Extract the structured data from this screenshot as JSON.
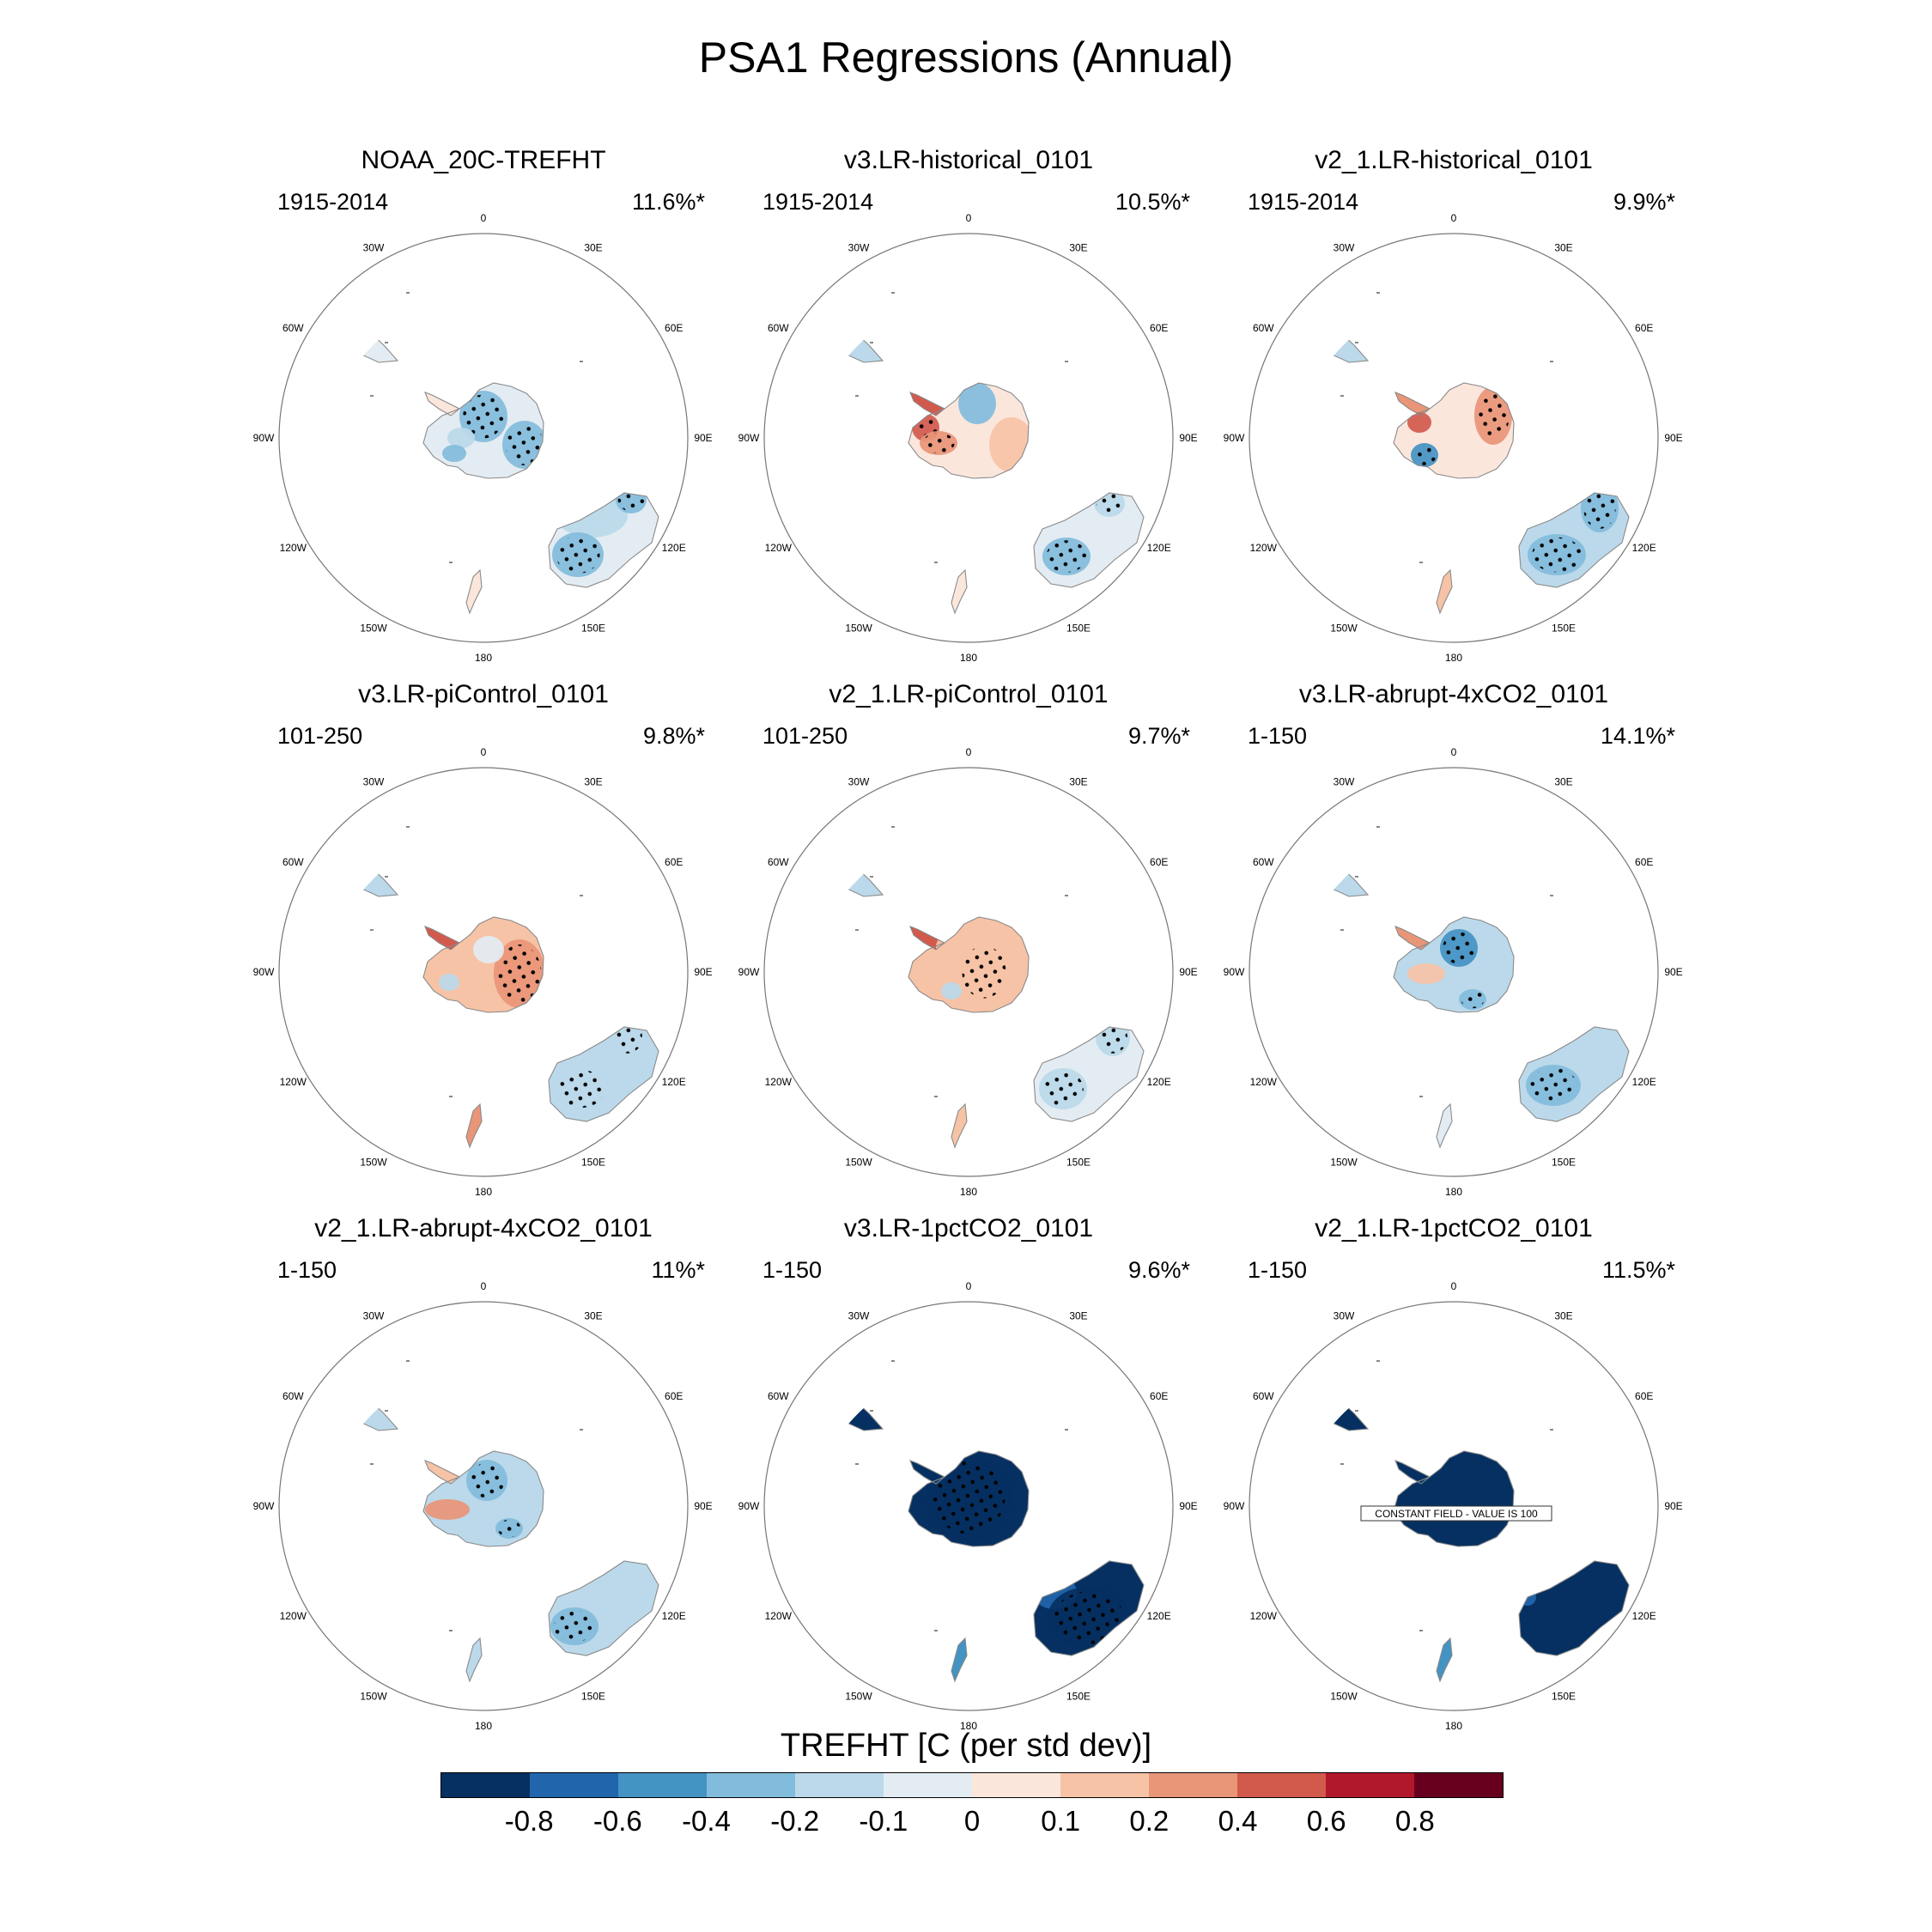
{
  "title": "PSA1 Regressions (Annual)",
  "lon_labels": [
    "0",
    "30E",
    "60E",
    "90E",
    "120E",
    "150E",
    "180",
    "150W",
    "120W",
    "90W",
    "60W",
    "30W"
  ],
  "panels": [
    {
      "title": "NOAA_20C-TREFHT",
      "period": "1915-2014",
      "pct": "11.6%*",
      "pattern": "noaa"
    },
    {
      "title": "v3.LR-historical_0101",
      "period": "1915-2014",
      "pct": "10.5%*",
      "pattern": "hist3"
    },
    {
      "title": "v2_1.LR-historical_0101",
      "period": "1915-2014",
      "pct": "9.9%*",
      "pattern": "hist2"
    },
    {
      "title": "v3.LR-piControl_0101",
      "period": "101-250",
      "pct": "9.8%*",
      "pattern": "pi3"
    },
    {
      "title": "v2_1.LR-piControl_0101",
      "period": "101-250",
      "pct": "9.7%*",
      "pattern": "pi2"
    },
    {
      "title": "v3.LR-abrupt-4xCO2_0101",
      "period": "1-150",
      "pct": "14.1%*",
      "pattern": "abr3"
    },
    {
      "title": "v2_1.LR-abrupt-4xCO2_0101",
      "period": "1-150",
      "pct": "11%*",
      "pattern": "abr2"
    },
    {
      "title": "v3.LR-1pctCO2_0101",
      "period": "1-150",
      "pct": "9.6%*",
      "pattern": "pct3"
    },
    {
      "title": "v2_1.LR-1pctCO2_0101",
      "period": "1-150",
      "pct": "11.5%*",
      "pattern": "pct2",
      "note": "CONSTANT FIELD - VALUE IS 100"
    }
  ],
  "colorbar": {
    "title": "TREFHT [C (per std dev)]",
    "ticks": [
      "-0.8",
      "-0.6",
      "-0.4",
      "-0.2",
      "-0.1",
      "0",
      "0.1",
      "0.2",
      "0.4",
      "0.6",
      "0.8"
    ],
    "colors": [
      "#053061",
      "#2166ac",
      "#4393c3",
      "#82bcdc",
      "#bbd9ea",
      "#e3ecf2",
      "#fbe6dc",
      "#f6c3a6",
      "#e99577",
      "#d25a4d",
      "#b2182b",
      "#67001f"
    ]
  }
}
